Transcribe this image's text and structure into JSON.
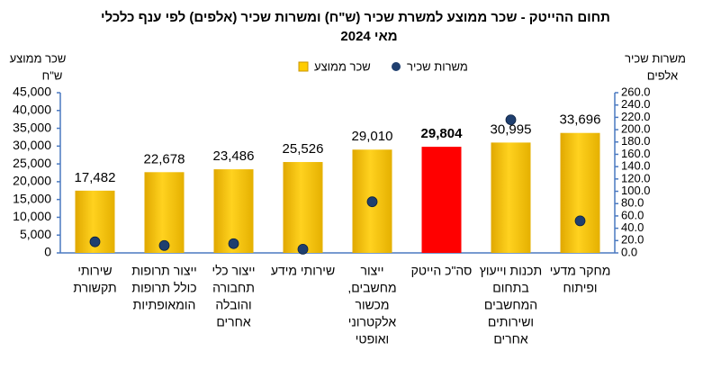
{
  "chart_data": {
    "type": "bar",
    "title": "תחום ההייטק -  שכר ממוצע למשרת שכיר (ש\"ח) ומשרות שכיר (אלפים) לפי ענף כלכלי",
    "subtitle": "מאי  2024",
    "y_label": [
      "שכר ממוצע",
      "ש\"ח"
    ],
    "y2_label": [
      "משרות שכיר",
      "אלפים"
    ],
    "categories": [
      [
        "שירותי",
        "תקשורת"
      ],
      [
        "ייצור תרופות",
        "כולל תרופות",
        "הומאופתיות"
      ],
      [
        "ייצור כלי",
        "תחבורה",
        "והובלה",
        "אחרים"
      ],
      [
        "שירותי מידע"
      ],
      [
        "ייצור",
        "מחשבים,",
        "מכשור",
        "אלקטרוני",
        "ואופטי"
      ],
      [
        "סה\"כ הייטק"
      ],
      [
        "תכנות וייעוץ",
        "בתחום",
        "המחשבים",
        "ושירותים",
        "אחרים"
      ],
      [
        "מחקר מדעי",
        "ופיתוח"
      ]
    ],
    "series": [
      {
        "name": "שכר ממוצע",
        "type": "bar",
        "color": "#FFCC00",
        "colors": [
          "#FFCC00",
          "#FFCC00",
          "#FFCC00",
          "#FFCC00",
          "#FFCC00",
          "#FF0000",
          "#FFCC00",
          "#FFCC00"
        ],
        "values": [
          17482,
          22678,
          23486,
          25526,
          29010,
          29804,
          30995,
          33696
        ],
        "value_labels": [
          "17,482",
          "22,678",
          "23,486",
          "25,526",
          "29,010",
          "29,804",
          "30,995",
          "33,696"
        ],
        "emphasis": [
          false,
          false,
          false,
          false,
          false,
          true,
          false,
          false
        ]
      },
      {
        "name": "משרות שכיר",
        "type": "scatter",
        "axis": "y2",
        "color": "#1F3F6F",
        "values": [
          18,
          12,
          15,
          6,
          83,
          null,
          216,
          52
        ]
      }
    ],
    "ylim": [
      0,
      45000
    ],
    "yticks": [
      0,
      {
        "value": 5000,
        "label": "5,000"
      },
      {
        "value": 10000,
        "label": "10,000"
      },
      {
        "value": 15000,
        "label": "15,000"
      },
      {
        "value": 20000,
        "label": "20,000"
      },
      {
        "value": 25000,
        "label": "25,000"
      },
      {
        "value": 30000,
        "label": "30,000"
      },
      {
        "value": 35000,
        "label": "35,000"
      },
      {
        "value": 40000,
        "label": "40,000"
      },
      {
        "value": 45000,
        "label": "45,000"
      }
    ],
    "y2lim": [
      0,
      260
    ],
    "y2ticks": [
      {
        "value": 0,
        "label": "0.0"
      },
      {
        "value": 20,
        "label": "20.0"
      },
      {
        "value": 40,
        "label": "40.0"
      },
      {
        "value": 60,
        "label": "60.0"
      },
      {
        "value": 80,
        "label": "80.0"
      },
      {
        "value": 100,
        "label": "100.0"
      },
      {
        "value": 120,
        "label": "120.0"
      },
      {
        "value": 140,
        "label": "140.0"
      },
      {
        "value": 160,
        "label": "160.0"
      },
      {
        "value": 180,
        "label": "180.0"
      },
      {
        "value": 200,
        "label": "200.0"
      },
      {
        "value": 220,
        "label": "220.0"
      },
      {
        "value": 240,
        "label": "240.0"
      },
      {
        "value": 260,
        "label": "260.0"
      }
    ],
    "grid": false
  }
}
